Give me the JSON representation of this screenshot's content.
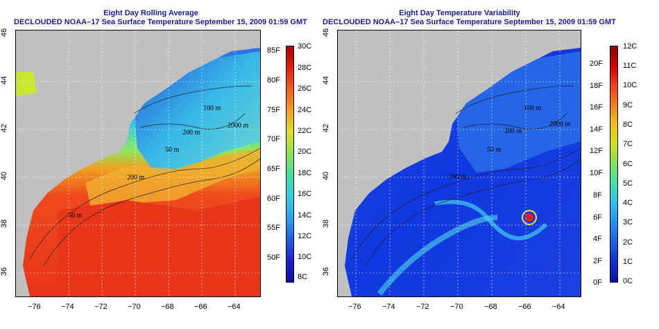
{
  "left_panel": {
    "title_line1": "Eight Day Rolling Average",
    "title_line2": "DECLOUDED NOAA–17 Sea Surface Temperature September 15, 2009 01:59 GMT",
    "colorbar_f": [
      "85F",
      "80F",
      "75F",
      "70F",
      "65F",
      "60F",
      "55F",
      "50F"
    ],
    "colorbar_c": [
      "30C",
      "28C",
      "26C",
      "24C",
      "22C",
      "20C",
      "18C",
      "16C",
      "14C",
      "12C",
      "10C",
      "8C"
    ],
    "contour_labels": [
      "100 m",
      "200 m",
      "2000 m",
      "50 m",
      "200 m",
      "50 m"
    ],
    "colors": {
      "land": "#c0c0c0",
      "warm": "#e8361a",
      "cold": "#1f4fd8",
      "mid": "#3ad8e0"
    }
  },
  "right_panel": {
    "title_line1": "Eight Day Temperature Variability",
    "title_line2": "DECLOUDED NOAA–17 Sea Surface Temperature September 15, 2009 01:59 GMT",
    "colorbar_f": [
      "20F",
      "18F",
      "16F",
      "14F",
      "12F",
      "10F",
      "8F",
      "6F",
      "4F",
      "2F",
      "0F"
    ],
    "colorbar_c": [
      "12C",
      "11C",
      "10C",
      "9C",
      "8C",
      "7C",
      "6C",
      "5C",
      "4C",
      "3C",
      "2C",
      "1C",
      "0C"
    ],
    "contour_labels": [
      "100 m",
      "200 m",
      "2000 m",
      "50 m",
      "200 m"
    ],
    "colors": {
      "land": "#c0c0c0",
      "low": "#1030e0",
      "high": "#30c8f0"
    }
  },
  "axes": {
    "lon_ticks": [
      "−76",
      "−74",
      "−72",
      "−70",
      "−68",
      "−66",
      "−64"
    ],
    "lat_ticks": [
      "36",
      "38",
      "40",
      "42",
      "44",
      "46"
    ]
  }
}
